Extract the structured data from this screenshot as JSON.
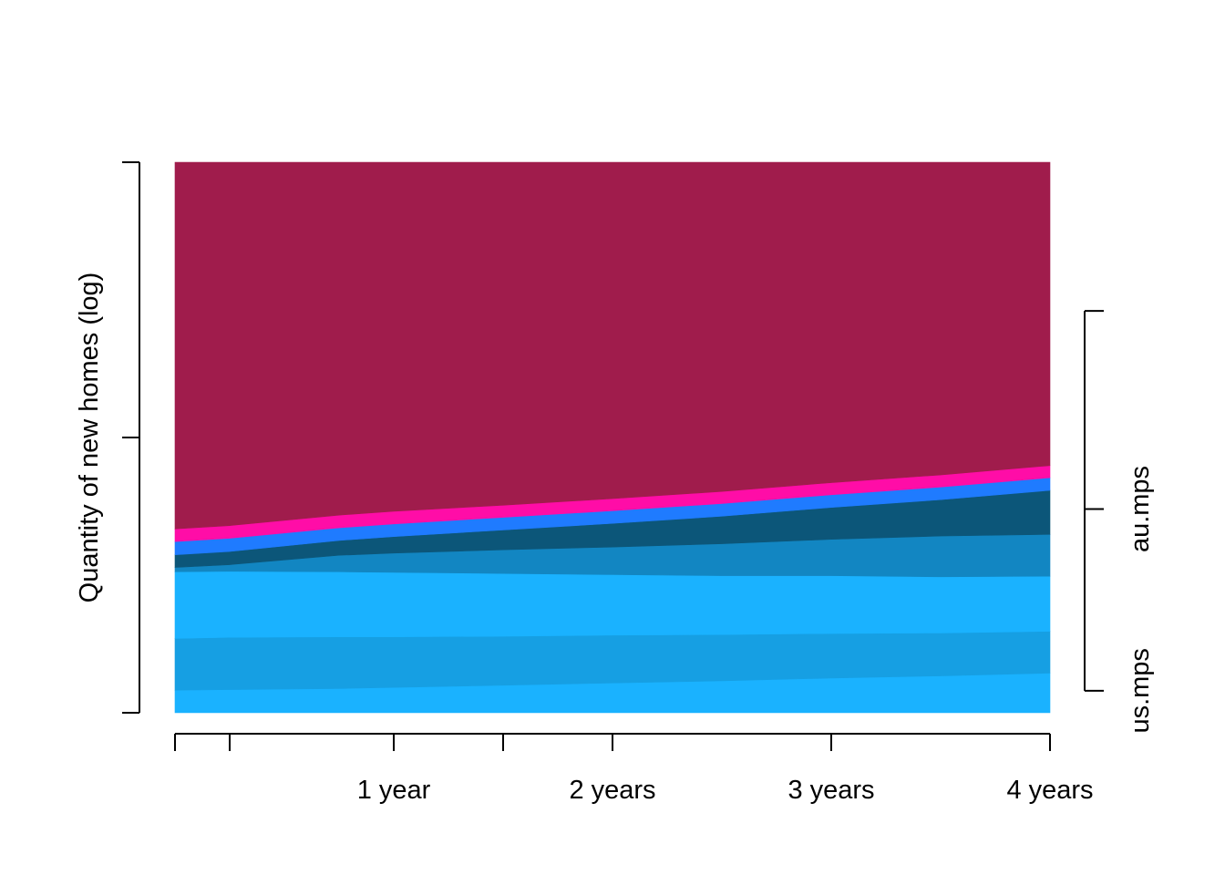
{
  "chart_data": {
    "type": "area",
    "stacked": true,
    "title": "",
    "xlabel": "",
    "ylabel": "Quantity of new homes (log)",
    "x": [
      0,
      0.25,
      0.75,
      1,
      1.5,
      2,
      2.5,
      3,
      3.5,
      4
    ],
    "xlim": [
      0,
      4
    ],
    "x_ticks": [
      0,
      0.25,
      1,
      1.5,
      2,
      3,
      4
    ],
    "x_tick_labels": [
      {
        "x": 1,
        "label": "1 year"
      },
      {
        "x": 2,
        "label": "2 years"
      },
      {
        "x": 3,
        "label": "3 years"
      },
      {
        "x": 4,
        "label": "4 years"
      }
    ],
    "ylim": [
      0,
      1
    ],
    "y_ticks": [
      0,
      0.5,
      1
    ],
    "y_tick_labels": [],
    "series": [
      {
        "color": "#1AB2FF",
        "values": [
          0.041,
          0.042,
          0.044,
          0.046,
          0.05,
          0.054,
          0.058,
          0.063,
          0.067,
          0.072
        ]
      },
      {
        "color": "#169FE3",
        "values": [
          0.094,
          0.095,
          0.094,
          0.092,
          0.089,
          0.087,
          0.084,
          0.081,
          0.078,
          0.076
        ]
      },
      {
        "color": "#1AB2FF",
        "values": [
          0.121,
          0.12,
          0.118,
          0.117,
          0.114,
          0.11,
          0.107,
          0.105,
          0.102,
          0.1
        ]
      },
      {
        "color": "#1286C2",
        "values": [
          0.008,
          0.012,
          0.03,
          0.035,
          0.043,
          0.05,
          0.058,
          0.066,
          0.074,
          0.076
        ]
      },
      {
        "color": "#0C5679",
        "values": [
          0.023,
          0.024,
          0.027,
          0.03,
          0.036,
          0.043,
          0.05,
          0.058,
          0.066,
          0.08
        ]
      },
      {
        "color": "#1F7BFF",
        "values": [
          0.024,
          0.024,
          0.023,
          0.023,
          0.023,
          0.023,
          0.023,
          0.023,
          0.023,
          0.023
        ]
      },
      {
        "color": "#FF0DA7",
        "values": [
          0.023,
          0.023,
          0.023,
          0.023,
          0.022,
          0.022,
          0.022,
          0.022,
          0.022,
          0.022
        ]
      },
      {
        "color": "#A01C4C",
        "values": [
          0.666,
          0.66,
          0.641,
          0.634,
          0.623,
          0.611,
          0.598,
          0.582,
          0.568,
          0.551
        ]
      }
    ],
    "right_axis": {
      "labels": [
        {
          "value": 0.04,
          "label": "us.mps"
        },
        {
          "value": 0.37,
          "label": "au.mps"
        }
      ],
      "ticks": [
        0.04,
        0.37,
        0.73
      ],
      "range": [
        0.04,
        0.73
      ]
    }
  }
}
